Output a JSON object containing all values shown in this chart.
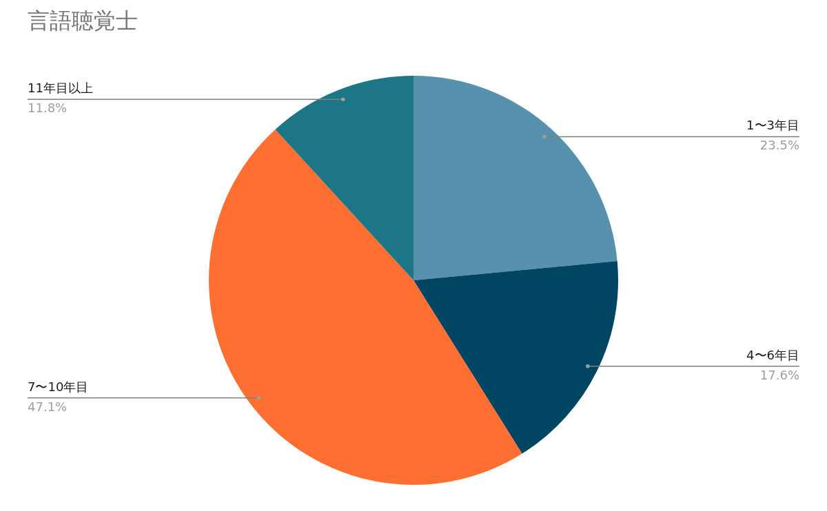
{
  "chart_data": {
    "type": "pie",
    "title": "言語聴覚士",
    "categories": [
      "1〜3年目",
      "4〜6年目",
      "7〜10年目",
      "11年目以上"
    ],
    "values": [
      23.5,
      17.6,
      47.1,
      11.8
    ],
    "colors": [
      "#5891ad",
      "#004561",
      "#ff6f31",
      "#1c7685"
    ],
    "value_labels": [
      "23.5%",
      "17.6%",
      "47.1%",
      "11.8%"
    ]
  }
}
